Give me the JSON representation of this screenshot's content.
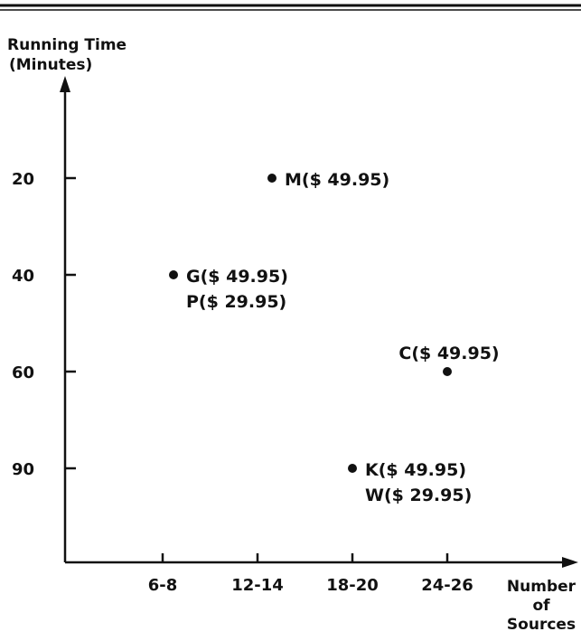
{
  "chart_data": {
    "type": "scatter",
    "title": "",
    "ylabel": [
      "Running Time",
      "(Minutes)"
    ],
    "xlabel": [
      "Number",
      "of",
      "Sources"
    ],
    "categories": [
      "6-8",
      "12-14",
      "18-20",
      "24-26"
    ],
    "y_ticks": [
      "20",
      "40",
      "60",
      "90"
    ],
    "y_axis_inverted": true,
    "grid": false,
    "legend": "none",
    "points": [
      {
        "x": "12-14",
        "x_offset": 0.4,
        "y": "20",
        "labels": [
          "M($ 49.95)"
        ]
      },
      {
        "x": "6-8",
        "x_offset": 0.3,
        "y": "40",
        "labels": [
          "G($ 49.95)",
          "P($ 29.95)"
        ]
      },
      {
        "x": "24-26",
        "x_offset": 0.0,
        "y": "60",
        "labels": [
          "C($ 49.95)"
        ]
      },
      {
        "x": "18-20",
        "x_offset": 0.0,
        "y": "90",
        "labels": [
          "K($ 49.95)",
          "W($ 29.95)"
        ]
      }
    ]
  }
}
